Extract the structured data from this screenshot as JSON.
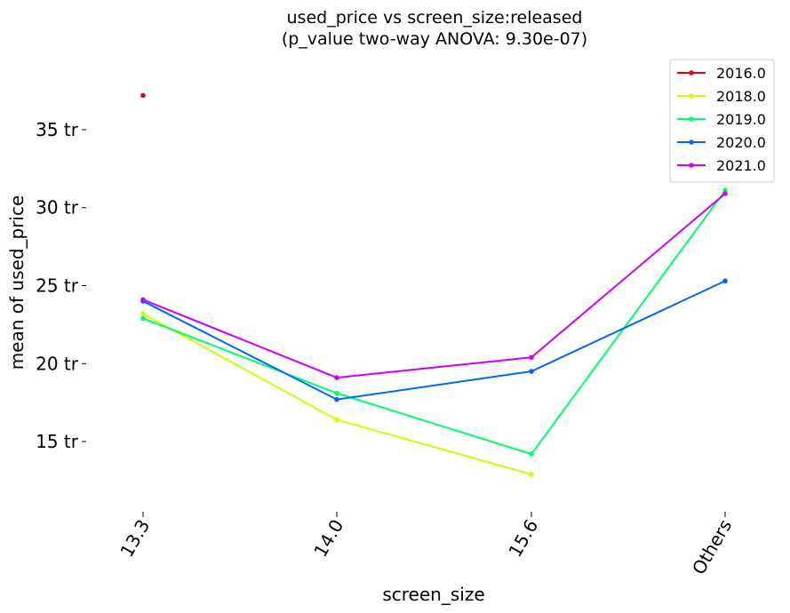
{
  "chart_data": {
    "type": "line",
    "title_line1": "used_price vs screen_size:released",
    "title_line2": "(p_value two-way ANOVA: 9.30e-07)",
    "xlabel": "screen_size",
    "ylabel": "mean of used_price",
    "categories": [
      "13.3",
      "14.0",
      "15.6",
      "Others"
    ],
    "yticks": [
      15,
      20,
      25,
      30,
      35
    ],
    "ytick_labels": [
      "15 tr",
      "20 tr",
      "25 tr",
      "30 tr",
      "35 tr"
    ],
    "ylim": [
      10.5,
      39.5
    ],
    "grid": false,
    "legend_position": "top-right",
    "series": [
      {
        "name": "2016.0",
        "color": "#e8000b",
        "values": [
          37.2,
          null,
          null,
          null
        ]
      },
      {
        "name": "2018.0",
        "color": "#ccff00",
        "values": [
          23.2,
          16.4,
          12.9,
          null
        ]
      },
      {
        "name": "2019.0",
        "color": "#00ff66",
        "values": [
          22.9,
          18.1,
          14.2,
          31.1
        ]
      },
      {
        "name": "2020.0",
        "color": "#0066ff",
        "values": [
          24.0,
          17.7,
          19.5,
          25.3
        ]
      },
      {
        "name": "2021.0",
        "color": "#cc00ff",
        "values": [
          24.1,
          19.1,
          20.4,
          30.9
        ]
      }
    ]
  }
}
